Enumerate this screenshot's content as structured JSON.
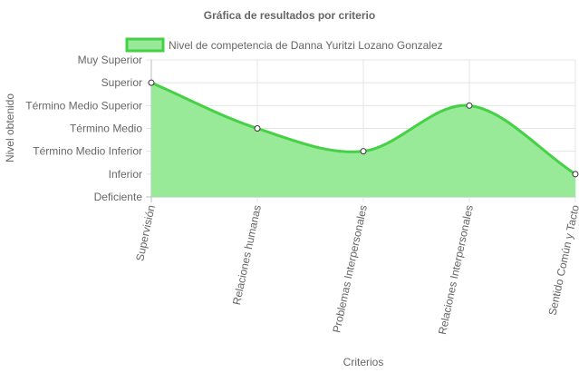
{
  "chart_data": {
    "type": "area",
    "title": "Gráfica de resultados por criterio",
    "xlabel": "Criterios",
    "ylabel": "Nivel obtenido",
    "legend_position": "top",
    "grid": true,
    "categories": [
      "Supervisión",
      "Relaciones humanas",
      "Problemas Interpersonales",
      "Relaciones Interpersonales",
      "Sentido Común y Tacto"
    ],
    "y_levels": [
      "Deficiente",
      "Inferior",
      "Término Medio Inferior",
      "Término Medio",
      "Término Medio Superior",
      "Superior",
      "Muy Superior"
    ],
    "ylim": [
      0,
      6
    ],
    "series": [
      {
        "name": "Nivel de competencia de Danna Yuritzi Lozano Gonzalez",
        "values": [
          5,
          3,
          2,
          4,
          1
        ],
        "color": "#45d145",
        "fill": "#98e998"
      }
    ]
  }
}
